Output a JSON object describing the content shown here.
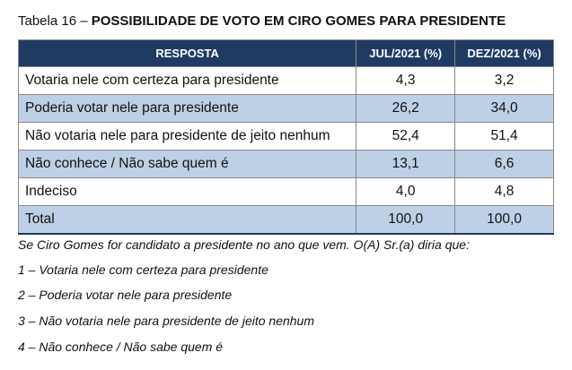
{
  "caption": {
    "prefix": "Tabela 16 – ",
    "title": "POSSIBILIDADE DE VOTO EM CIRO GOMES PARA PRESIDENTE"
  },
  "table": {
    "headers": [
      "RESPOSTA",
      "JUL/2021 (%)",
      "DEZ/2021 (%)"
    ],
    "rows": [
      {
        "label": "Votaria nele com certeza para presidente",
        "jul": "4,3",
        "dez": "3,2"
      },
      {
        "label": "Poderia votar nele para presidente",
        "jul": "26,2",
        "dez": "34,0"
      },
      {
        "label": "Não votaria nele para presidente de jeito nenhum",
        "jul": "52,4",
        "dez": "51,4"
      },
      {
        "label": "Não conhece / Não sabe quem é",
        "jul": "13,1",
        "dez": "6,6"
      },
      {
        "label": "Indeciso",
        "jul": "4,0",
        "dez": "4,8"
      },
      {
        "label": "Total",
        "jul": "100,0",
        "dez": "100,0"
      }
    ],
    "colors": {
      "header_bg": "#1f3b63",
      "shaded_row": "#bdd0e6"
    }
  },
  "notes": [
    "Se Ciro Gomes for candidato a presidente no ano que vem. O(A) Sr.(a) diria que:",
    "1 – Votaria nele com certeza para presidente",
    "2 – Poderia votar nele para presidente",
    "3 – Não votaria nele para presidente de jeito nenhum",
    "4 – Não conhece / Não sabe quem é"
  ]
}
